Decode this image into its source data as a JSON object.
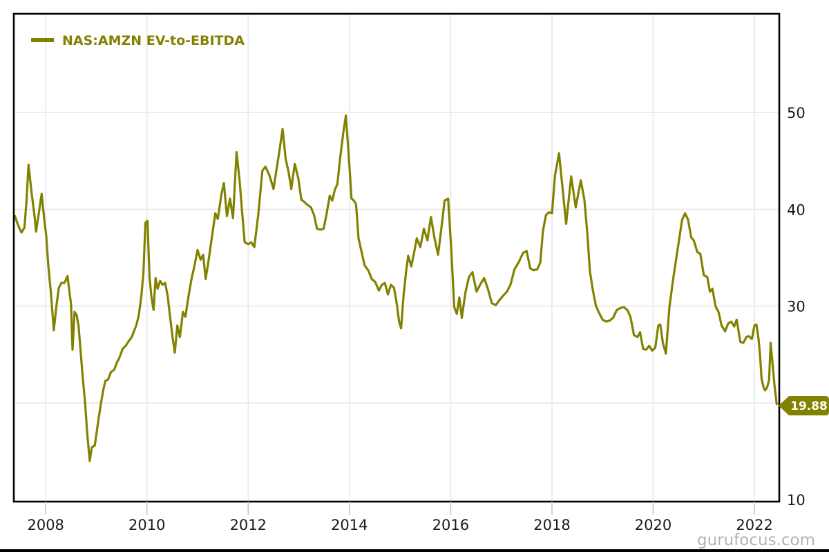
{
  "chart_data": {
    "type": "line",
    "title": "",
    "xlabel": "",
    "ylabel": "",
    "grid": true,
    "legend_position": "top-left-inside",
    "x_ticks": [
      2008,
      2010,
      2012,
      2014,
      2016,
      2018,
      2020,
      2022
    ],
    "y_ticks": [
      10,
      20,
      30,
      40,
      50
    ],
    "x_range": [
      2007.37,
      2022.49
    ],
    "y_range": [
      9.8,
      60.2
    ],
    "last_value_label": "19.88",
    "series": [
      {
        "name": "NAS:AMZN EV-to-EBITDA",
        "color": "#828200",
        "points": [
          [
            2007.39,
            39.3
          ],
          [
            2007.46,
            38.3
          ],
          [
            2007.52,
            37.6
          ],
          [
            2007.58,
            38.1
          ],
          [
            2007.62,
            40.8
          ],
          [
            2007.66,
            44.6
          ],
          [
            2007.72,
            41.8
          ],
          [
            2007.78,
            39.3
          ],
          [
            2007.81,
            37.7
          ],
          [
            2007.87,
            39.8
          ],
          [
            2007.92,
            41.6
          ],
          [
            2007.97,
            39.0
          ],
          [
            2008.01,
            37.3
          ],
          [
            2008.05,
            34.3
          ],
          [
            2008.1,
            31.5
          ],
          [
            2008.16,
            27.5
          ],
          [
            2008.21,
            30.0
          ],
          [
            2008.26,
            31.9
          ],
          [
            2008.31,
            32.4
          ],
          [
            2008.37,
            32.4
          ],
          [
            2008.43,
            33.1
          ],
          [
            2008.5,
            30.2
          ],
          [
            2008.53,
            25.5
          ],
          [
            2008.57,
            29.4
          ],
          [
            2008.61,
            29.1
          ],
          [
            2008.65,
            27.9
          ],
          [
            2008.73,
            22.7
          ],
          [
            2008.78,
            19.9
          ],
          [
            2008.82,
            16.8
          ],
          [
            2008.87,
            14.0
          ],
          [
            2008.91,
            15.4
          ],
          [
            2008.97,
            15.6
          ],
          [
            2009.04,
            18.2
          ],
          [
            2009.09,
            19.9
          ],
          [
            2009.14,
            21.4
          ],
          [
            2009.18,
            22.3
          ],
          [
            2009.23,
            22.4
          ],
          [
            2009.29,
            23.2
          ],
          [
            2009.35,
            23.4
          ],
          [
            2009.4,
            24.1
          ],
          [
            2009.45,
            24.6
          ],
          [
            2009.52,
            25.6
          ],
          [
            2009.58,
            25.9
          ],
          [
            2009.63,
            26.3
          ],
          [
            2009.7,
            26.8
          ],
          [
            2009.75,
            27.5
          ],
          [
            2009.79,
            28.0
          ],
          [
            2009.84,
            29.1
          ],
          [
            2009.89,
            31.1
          ],
          [
            2009.93,
            33.4
          ],
          [
            2009.97,
            38.6
          ],
          [
            2010.01,
            38.8
          ],
          [
            2010.05,
            33.0
          ],
          [
            2010.09,
            30.9
          ],
          [
            2010.13,
            29.6
          ],
          [
            2010.17,
            32.9
          ],
          [
            2010.21,
            31.8
          ],
          [
            2010.26,
            32.6
          ],
          [
            2010.31,
            32.2
          ],
          [
            2010.36,
            32.4
          ],
          [
            2010.41,
            31.0
          ],
          [
            2010.45,
            29.2
          ],
          [
            2010.5,
            27.0
          ],
          [
            2010.55,
            25.2
          ],
          [
            2010.6,
            28.0
          ],
          [
            2010.65,
            26.8
          ],
          [
            2010.71,
            29.4
          ],
          [
            2010.76,
            28.9
          ],
          [
            2010.82,
            31.0
          ],
          [
            2010.88,
            32.8
          ],
          [
            2010.94,
            34.2
          ],
          [
            2011.0,
            35.8
          ],
          [
            2011.06,
            34.8
          ],
          [
            2011.11,
            35.3
          ],
          [
            2011.16,
            32.8
          ],
          [
            2011.22,
            34.8
          ],
          [
            2011.28,
            37.0
          ],
          [
            2011.35,
            39.6
          ],
          [
            2011.4,
            39.0
          ],
          [
            2011.47,
            41.5
          ],
          [
            2011.52,
            42.7
          ],
          [
            2011.58,
            39.3
          ],
          [
            2011.64,
            41.1
          ],
          [
            2011.7,
            39.1
          ],
          [
            2011.77,
            45.9
          ],
          [
            2011.83,
            43.0
          ],
          [
            2011.88,
            39.7
          ],
          [
            2011.93,
            36.6
          ],
          [
            2012.0,
            36.4
          ],
          [
            2012.06,
            36.6
          ],
          [
            2012.12,
            36.1
          ],
          [
            2012.2,
            39.5
          ],
          [
            2012.28,
            44.0
          ],
          [
            2012.34,
            44.4
          ],
          [
            2012.42,
            43.5
          ],
          [
            2012.5,
            42.1
          ],
          [
            2012.6,
            45.5
          ],
          [
            2012.68,
            48.3
          ],
          [
            2012.74,
            45.2
          ],
          [
            2012.8,
            43.8
          ],
          [
            2012.85,
            42.1
          ],
          [
            2012.92,
            44.7
          ],
          [
            2012.99,
            43.2
          ],
          [
            2013.05,
            41.0
          ],
          [
            2013.1,
            40.8
          ],
          [
            2013.16,
            40.5
          ],
          [
            2013.24,
            40.2
          ],
          [
            2013.3,
            39.4
          ],
          [
            2013.36,
            38.0
          ],
          [
            2013.43,
            37.9
          ],
          [
            2013.49,
            38.0
          ],
          [
            2013.55,
            39.6
          ],
          [
            2013.61,
            41.4
          ],
          [
            2013.66,
            40.9
          ],
          [
            2013.71,
            42.0
          ],
          [
            2013.76,
            42.6
          ],
          [
            2013.82,
            45.5
          ],
          [
            2013.88,
            48.0
          ],
          [
            2013.93,
            49.7
          ],
          [
            2014.0,
            44.5
          ],
          [
            2014.04,
            41.1
          ],
          [
            2014.09,
            40.9
          ],
          [
            2014.13,
            40.5
          ],
          [
            2014.18,
            37.0
          ],
          [
            2014.24,
            35.6
          ],
          [
            2014.3,
            34.2
          ],
          [
            2014.37,
            33.7
          ],
          [
            2014.44,
            32.8
          ],
          [
            2014.51,
            32.5
          ],
          [
            2014.58,
            31.6
          ],
          [
            2014.64,
            32.2
          ],
          [
            2014.7,
            32.4
          ],
          [
            2014.76,
            31.2
          ],
          [
            2014.82,
            32.2
          ],
          [
            2014.88,
            31.9
          ],
          [
            2014.93,
            30.4
          ],
          [
            2014.98,
            28.4
          ],
          [
            2015.02,
            27.7
          ],
          [
            2015.07,
            31.2
          ],
          [
            2015.12,
            33.6
          ],
          [
            2015.16,
            35.2
          ],
          [
            2015.22,
            34.1
          ],
          [
            2015.28,
            35.6
          ],
          [
            2015.33,
            37.0
          ],
          [
            2015.4,
            36.1
          ],
          [
            2015.47,
            38.0
          ],
          [
            2015.54,
            36.8
          ],
          [
            2015.61,
            39.2
          ],
          [
            2015.68,
            37.0
          ],
          [
            2015.75,
            35.3
          ],
          [
            2015.81,
            37.8
          ],
          [
            2015.88,
            40.9
          ],
          [
            2015.95,
            41.1
          ],
          [
            2016.01,
            36.0
          ],
          [
            2016.07,
            29.9
          ],
          [
            2016.12,
            29.2
          ],
          [
            2016.17,
            30.9
          ],
          [
            2016.22,
            28.8
          ],
          [
            2016.29,
            31.4
          ],
          [
            2016.36,
            33.0
          ],
          [
            2016.43,
            33.5
          ],
          [
            2016.51,
            31.5
          ],
          [
            2016.58,
            32.2
          ],
          [
            2016.66,
            32.9
          ],
          [
            2016.74,
            31.7
          ],
          [
            2016.81,
            30.3
          ],
          [
            2016.89,
            30.1
          ],
          [
            2016.96,
            30.6
          ],
          [
            2017.04,
            31.1
          ],
          [
            2017.11,
            31.5
          ],
          [
            2017.18,
            32.2
          ],
          [
            2017.26,
            33.8
          ],
          [
            2017.34,
            34.5
          ],
          [
            2017.43,
            35.5
          ],
          [
            2017.5,
            35.7
          ],
          [
            2017.57,
            33.9
          ],
          [
            2017.64,
            33.7
          ],
          [
            2017.71,
            33.8
          ],
          [
            2017.77,
            34.5
          ],
          [
            2017.82,
            37.7
          ],
          [
            2017.88,
            39.4
          ],
          [
            2017.94,
            39.7
          ],
          [
            2018.0,
            39.6
          ],
          [
            2018.06,
            43.5
          ],
          [
            2018.14,
            45.8
          ],
          [
            2018.28,
            38.5
          ],
          [
            2018.38,
            43.4
          ],
          [
            2018.47,
            40.2
          ],
          [
            2018.57,
            43.0
          ],
          [
            2018.64,
            41.0
          ],
          [
            2018.7,
            37.4
          ],
          [
            2018.75,
            33.6
          ],
          [
            2018.81,
            31.6
          ],
          [
            2018.87,
            30.0
          ],
          [
            2018.94,
            29.2
          ],
          [
            2019.0,
            28.6
          ],
          [
            2019.07,
            28.4
          ],
          [
            2019.14,
            28.5
          ],
          [
            2019.21,
            28.8
          ],
          [
            2019.28,
            29.6
          ],
          [
            2019.35,
            29.8
          ],
          [
            2019.42,
            29.9
          ],
          [
            2019.49,
            29.6
          ],
          [
            2019.55,
            28.9
          ],
          [
            2019.62,
            27.0
          ],
          [
            2019.69,
            26.8
          ],
          [
            2019.74,
            27.3
          ],
          [
            2019.8,
            25.6
          ],
          [
            2019.86,
            25.5
          ],
          [
            2019.92,
            25.9
          ],
          [
            2019.98,
            25.4
          ],
          [
            2020.04,
            25.7
          ],
          [
            2020.1,
            28.0
          ],
          [
            2020.14,
            28.1
          ],
          [
            2020.19,
            26.2
          ],
          [
            2020.25,
            25.1
          ],
          [
            2020.32,
            29.9
          ],
          [
            2020.4,
            33.0
          ],
          [
            2020.49,
            36.1
          ],
          [
            2020.57,
            38.9
          ],
          [
            2020.63,
            39.6
          ],
          [
            2020.69,
            38.9
          ],
          [
            2020.75,
            37.1
          ],
          [
            2020.8,
            36.8
          ],
          [
            2020.87,
            35.6
          ],
          [
            2020.93,
            35.4
          ],
          [
            2021.0,
            33.2
          ],
          [
            2021.07,
            33.0
          ],
          [
            2021.12,
            31.5
          ],
          [
            2021.17,
            31.8
          ],
          [
            2021.23,
            30.0
          ],
          [
            2021.29,
            29.4
          ],
          [
            2021.35,
            28.0
          ],
          [
            2021.42,
            27.4
          ],
          [
            2021.48,
            28.2
          ],
          [
            2021.54,
            28.4
          ],
          [
            2021.6,
            27.9
          ],
          [
            2021.65,
            28.6
          ],
          [
            2021.72,
            26.3
          ],
          [
            2021.78,
            26.2
          ],
          [
            2021.84,
            26.8
          ],
          [
            2021.89,
            26.9
          ],
          [
            2021.95,
            26.6
          ],
          [
            2022.0,
            28.0
          ],
          [
            2022.04,
            28.1
          ],
          [
            2022.08,
            26.6
          ],
          [
            2022.11,
            24.9
          ],
          [
            2022.14,
            22.5
          ],
          [
            2022.18,
            21.6
          ],
          [
            2022.21,
            21.3
          ],
          [
            2022.25,
            21.6
          ],
          [
            2022.29,
            22.4
          ],
          [
            2022.32,
            26.2
          ],
          [
            2022.36,
            23.9
          ],
          [
            2022.4,
            21.6
          ],
          [
            2022.44,
            19.88
          ]
        ]
      }
    ]
  },
  "legend": {
    "label": "NAS:AMZN EV-to-EBITDA"
  },
  "badge": {
    "value": "19.88"
  },
  "watermark": {
    "text": "gurufocus.com"
  },
  "colors": {
    "line": "#828200",
    "legend_text": "#828200",
    "badge_bg": "#828200",
    "badge_text": "#ffffff",
    "grid_horizontal": "#e8e8e8",
    "grid_vertical": "#e4e8f0",
    "tick": "#b9c7dd",
    "frame": "#000000",
    "axis_text": "#1a1a1a",
    "watermark": "#b4b4b4",
    "bottom_bar": "#000000"
  }
}
